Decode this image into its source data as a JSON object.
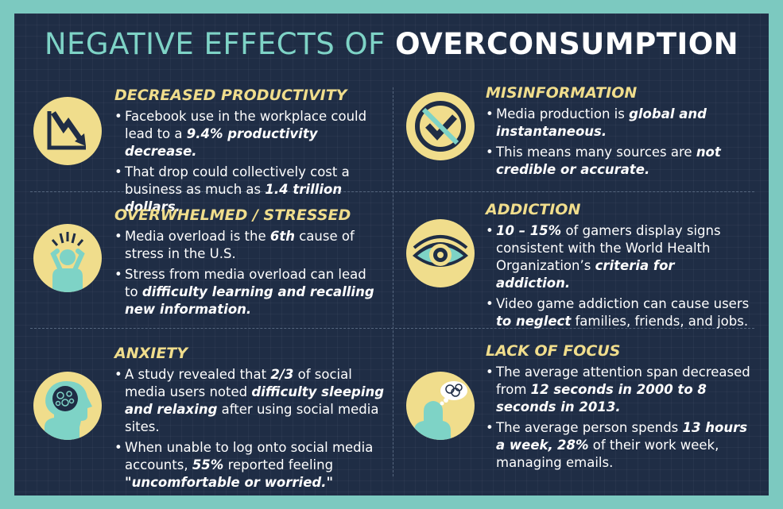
{
  "title": {
    "normal": "NEGATIVE EFFECTS OF ",
    "bold": "OVERCONSUMPTION"
  },
  "colors": {
    "background": "#1f2d45",
    "frame": "#7cc9c0",
    "accent_yellow": "#f0dd8c",
    "accent_teal": "#7ed3c6",
    "text": "#ffffff"
  },
  "sections": [
    {
      "heading": "DECREASED PRODUCTIVITY",
      "icon": "declining-chart-icon",
      "bullets": [
        [
          {
            "t": "Facebook use in the workplace could lead to a "
          },
          {
            "t": "9.4% productivity decrease.",
            "b": true
          }
        ],
        [
          {
            "t": "That drop could collectively cost a business as much as "
          },
          {
            "t": "1.4 trillion dollars.",
            "b": true
          }
        ]
      ]
    },
    {
      "heading": "MISINFORMATION",
      "icon": "no-checkmark-icon",
      "bullets": [
        [
          {
            "t": "Media production is "
          },
          {
            "t": "global and instantaneous.",
            "b": true
          }
        ],
        [
          {
            "t": "This means many sources are "
          },
          {
            "t": "not credible or accurate.",
            "b": true
          }
        ]
      ]
    },
    {
      "heading": "OVERWHELMED / STRESSED",
      "icon": "stressed-person-icon",
      "bullets": [
        [
          {
            "t": "Media overload is the "
          },
          {
            "t": "6th",
            "b": true
          },
          {
            "t": " cause of stress in the U.S."
          }
        ],
        [
          {
            "t": "Stress from media overload can lead to "
          },
          {
            "t": "difficulty learning and recalling new information.",
            "b": true
          }
        ]
      ]
    },
    {
      "heading": "ADDICTION",
      "icon": "eye-icon",
      "bullets": [
        [
          {
            "t": "10 – 15%",
            "b": true
          },
          {
            "t": " of gamers display signs consistent with the World Health Organization’s "
          },
          {
            "t": "criteria for addiction.",
            "b": true
          }
        ],
        [
          {
            "t": "Video game addiction can cause users "
          },
          {
            "t": "to neglect",
            "b": true
          },
          {
            "t": " families, friends, and jobs."
          }
        ]
      ]
    },
    {
      "heading": "ANXIETY",
      "icon": "anxious-brain-icon",
      "bullets": [
        [
          {
            "t": "A study revealed that "
          },
          {
            "t": "2/3",
            "b": true
          },
          {
            "t": " of social media users noted "
          },
          {
            "t": "difficulty sleeping and relaxing",
            "b": true
          },
          {
            "t": " after using social  media sites."
          }
        ],
        [
          {
            "t": "When unable to log onto social media accounts, "
          },
          {
            "t": "55%",
            "b": true
          },
          {
            "t": " reported feeling "
          },
          {
            "t": "\"uncomfortable or worried.\"",
            "b": true
          }
        ]
      ]
    },
    {
      "heading": "LACK OF FOCUS",
      "icon": "distracted-thought-icon",
      "bullets": [
        [
          {
            "t": "The average attention span decreased from "
          },
          {
            "t": "12 seconds in 2000 to 8 seconds in 2013.",
            "b": true
          }
        ],
        [
          {
            "t": "The average person spends "
          },
          {
            "t": "13 hours a week,",
            "b": true
          },
          {
            "t": " "
          },
          {
            "t": "28%",
            "b": true
          },
          {
            "t": " of their work week, managing emails."
          }
        ]
      ]
    }
  ]
}
